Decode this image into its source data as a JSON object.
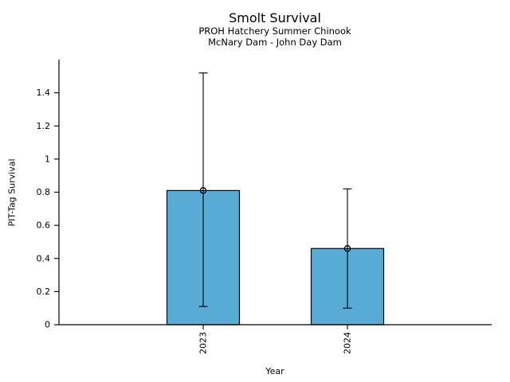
{
  "chart_data": {
    "type": "bar",
    "title": "Smolt Survival",
    "subtitle_line1": "PROH Hatchery Summer Chinook",
    "subtitle_line2": "McNary Dam - John Day Dam",
    "xlabel": "Year",
    "ylabel": "PIT-Tag Survival",
    "categories": [
      "2023",
      "2024"
    ],
    "values": [
      0.81,
      0.46
    ],
    "error_low": [
      0.11,
      0.1
    ],
    "error_high": [
      1.52,
      0.82
    ],
    "yticks": [
      0,
      0.2,
      0.4,
      0.6,
      0.8,
      1,
      1.2,
      1.4
    ],
    "ylim": [
      0,
      1.6
    ],
    "xtick_rotation_deg": 90,
    "marker": "open-circle",
    "grid": false,
    "legend": false,
    "colors": {
      "bar_fill": "#58ABD4",
      "bar_edge": "#000000",
      "axis": "#000000",
      "error_bar": "#000000",
      "background": "#ffffff",
      "text": "#000000"
    }
  }
}
